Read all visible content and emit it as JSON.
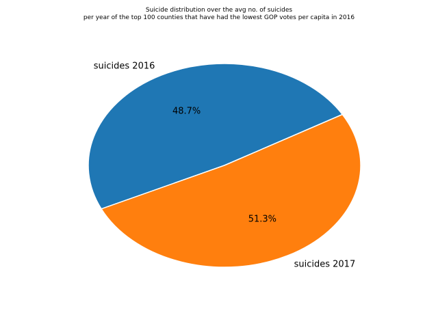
{
  "chart_data": {
    "type": "pie",
    "title_lines": [
      "Suicide distribution over the avg no. of suicides",
      "per year of the top 100 counties that have had the lowest GOP votes per capita in 2016"
    ],
    "slices": [
      {
        "label": "suicides 2016",
        "value": 48.7,
        "percent_label": "48.7%",
        "color": "#1f77b4"
      },
      {
        "label": "suicides 2017",
        "value": 51.3,
        "percent_label": "51.3%",
        "color": "#ff7f0e"
      }
    ],
    "start_angle_deg": 30,
    "direction": "counterclockwise",
    "wedge_edge_color": "#ffffff",
    "legend": "none"
  }
}
